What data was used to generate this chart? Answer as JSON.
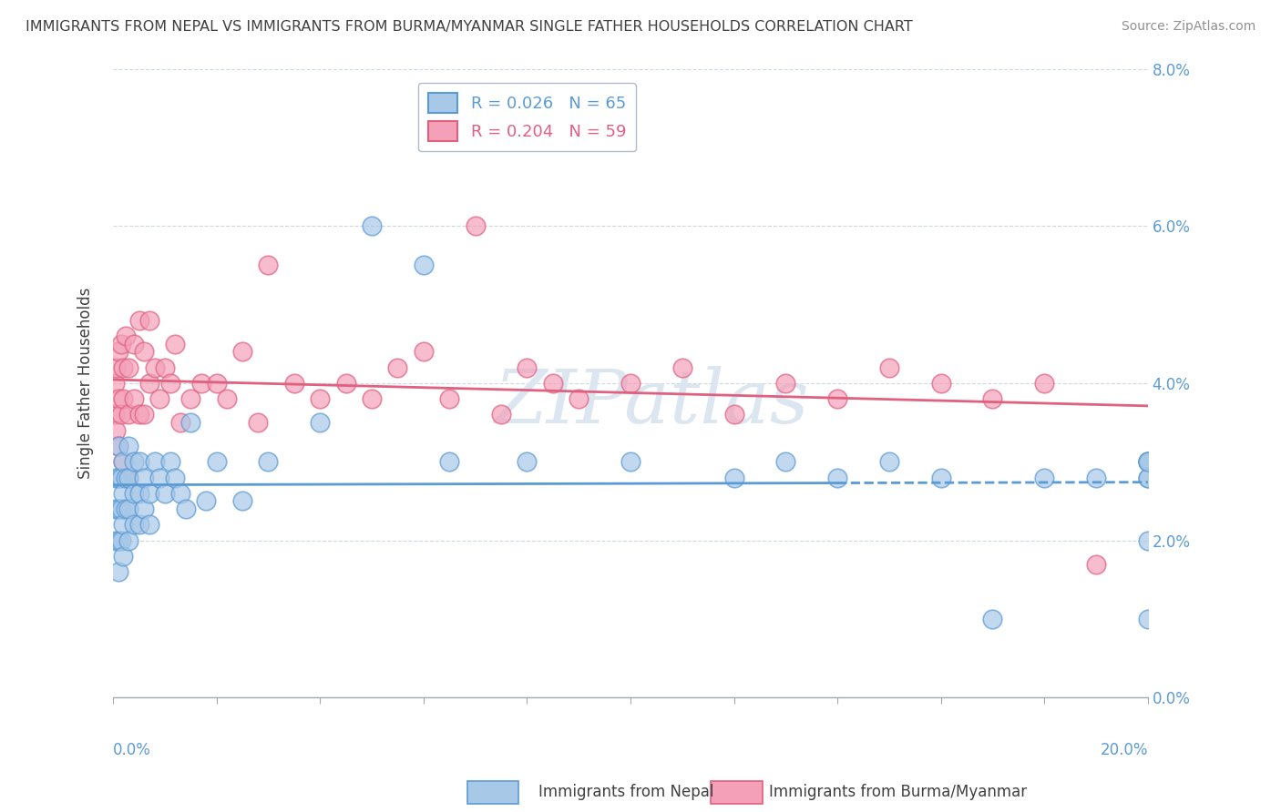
{
  "title": "IMMIGRANTS FROM NEPAL VS IMMIGRANTS FROM BURMA/MYANMAR SINGLE FATHER HOUSEHOLDS CORRELATION CHART",
  "source": "Source: ZipAtlas.com",
  "ylabel": "Single Father Households",
  "xlabel_nepal": "Immigrants from Nepal",
  "xlabel_burma": "Immigrants from Burma/Myanmar",
  "nepal_R": 0.026,
  "nepal_N": 65,
  "burma_R": 0.204,
  "burma_N": 59,
  "xlim": [
    0.0,
    0.2
  ],
  "ylim": [
    0.0,
    0.08
  ],
  "xticks": [
    0.0,
    0.02,
    0.04,
    0.06,
    0.08,
    0.1,
    0.12,
    0.14,
    0.16,
    0.18,
    0.2
  ],
  "yticks": [
    0.0,
    0.02,
    0.04,
    0.06,
    0.08
  ],
  "nepal_color": "#a8c8e8",
  "burma_color": "#f4a0b8",
  "nepal_line_color": "#5b9bd5",
  "burma_line_color": "#e06080",
  "watermark_color": "#d0dce8",
  "background_color": "#ffffff",
  "nepal_x": [
    0.0005,
    0.0005,
    0.0005,
    0.001,
    0.001,
    0.001,
    0.001,
    0.001,
    0.0015,
    0.0015,
    0.0015,
    0.002,
    0.002,
    0.002,
    0.002,
    0.0025,
    0.0025,
    0.003,
    0.003,
    0.003,
    0.003,
    0.004,
    0.004,
    0.004,
    0.005,
    0.005,
    0.005,
    0.006,
    0.006,
    0.007,
    0.007,
    0.008,
    0.009,
    0.01,
    0.011,
    0.012,
    0.013,
    0.014,
    0.015,
    0.018,
    0.02,
    0.025,
    0.03,
    0.04,
    0.05,
    0.06,
    0.065,
    0.08,
    0.1,
    0.12,
    0.13,
    0.14,
    0.15,
    0.16,
    0.17,
    0.18,
    0.19,
    0.2,
    0.2,
    0.2,
    0.2,
    0.2,
    0.2,
    0.2,
    0.2
  ],
  "nepal_y": [
    0.028,
    0.024,
    0.02,
    0.032,
    0.028,
    0.024,
    0.02,
    0.016,
    0.028,
    0.024,
    0.02,
    0.03,
    0.026,
    0.022,
    0.018,
    0.028,
    0.024,
    0.032,
    0.028,
    0.024,
    0.02,
    0.03,
    0.026,
    0.022,
    0.03,
    0.026,
    0.022,
    0.028,
    0.024,
    0.026,
    0.022,
    0.03,
    0.028,
    0.026,
    0.03,
    0.028,
    0.026,
    0.024,
    0.035,
    0.025,
    0.03,
    0.025,
    0.03,
    0.035,
    0.06,
    0.055,
    0.03,
    0.03,
    0.03,
    0.028,
    0.03,
    0.028,
    0.03,
    0.028,
    0.01,
    0.028,
    0.028,
    0.03,
    0.03,
    0.028,
    0.03,
    0.028,
    0.03,
    0.02,
    0.01
  ],
  "burma_x": [
    0.0003,
    0.0003,
    0.0005,
    0.0005,
    0.001,
    0.001,
    0.001,
    0.0015,
    0.0015,
    0.002,
    0.002,
    0.002,
    0.0025,
    0.003,
    0.003,
    0.003,
    0.004,
    0.004,
    0.005,
    0.005,
    0.006,
    0.006,
    0.007,
    0.007,
    0.008,
    0.009,
    0.01,
    0.011,
    0.012,
    0.013,
    0.015,
    0.017,
    0.02,
    0.022,
    0.025,
    0.028,
    0.03,
    0.035,
    0.04,
    0.045,
    0.05,
    0.055,
    0.06,
    0.065,
    0.07,
    0.075,
    0.08,
    0.085,
    0.09,
    0.1,
    0.11,
    0.12,
    0.13,
    0.14,
    0.15,
    0.16,
    0.17,
    0.18,
    0.19
  ],
  "burma_y": [
    0.04,
    0.036,
    0.042,
    0.034,
    0.044,
    0.038,
    0.032,
    0.045,
    0.036,
    0.042,
    0.038,
    0.03,
    0.046,
    0.042,
    0.036,
    0.028,
    0.045,
    0.038,
    0.048,
    0.036,
    0.044,
    0.036,
    0.048,
    0.04,
    0.042,
    0.038,
    0.042,
    0.04,
    0.045,
    0.035,
    0.038,
    0.04,
    0.04,
    0.038,
    0.044,
    0.035,
    0.055,
    0.04,
    0.038,
    0.04,
    0.038,
    0.042,
    0.044,
    0.038,
    0.06,
    0.036,
    0.042,
    0.04,
    0.038,
    0.04,
    0.042,
    0.036,
    0.04,
    0.038,
    0.042,
    0.04,
    0.038,
    0.04,
    0.017
  ]
}
